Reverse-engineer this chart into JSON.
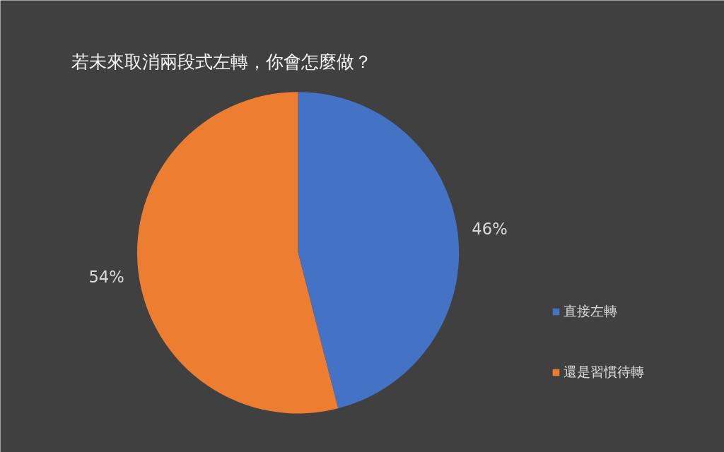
{
  "chart_data": {
    "type": "pie",
    "title": "若未來取消兩段式左轉，你會怎麼做？",
    "categories": [
      "直接左轉",
      "還是習慣待轉"
    ],
    "values": [
      46,
      54
    ],
    "colors": [
      "#4472c4",
      "#ed7d31"
    ],
    "value_labels": [
      "46%",
      "54%"
    ],
    "legend": "right"
  }
}
